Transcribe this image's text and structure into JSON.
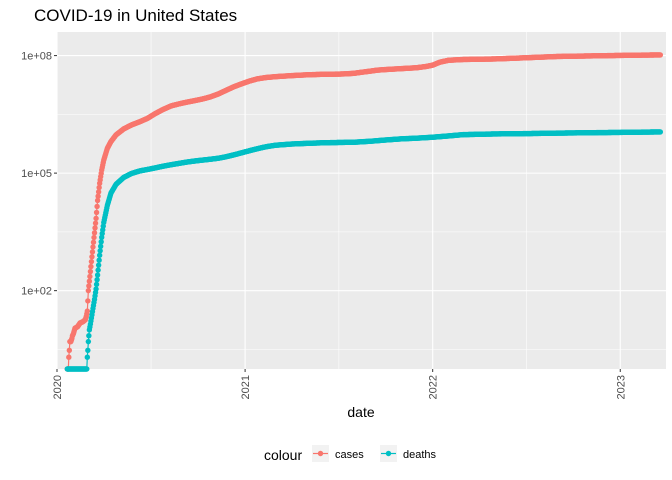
{
  "chart_data": {
    "type": "scatter",
    "title": "COVID-19 in United States",
    "xlabel": "date",
    "ylabel": "",
    "x_scale": "date",
    "y_scale": "log10",
    "xlim": [
      "2020-01-01",
      "2023-03-31"
    ],
    "ylim": [
      1,
      400000000
    ],
    "x_ticks": [
      "2020-01-01",
      "2021-01-01",
      "2022-01-01",
      "2023-01-01"
    ],
    "x_tick_labels": [
      "2020",
      "2021",
      "2022",
      "2023"
    ],
    "y_ticks": [
      100,
      100000,
      100000000
    ],
    "y_tick_labels": [
      "1e+02",
      "1e+05",
      "1e+08"
    ],
    "grid": true,
    "panel_background": "#EBEBEB",
    "legend": {
      "title": "colour",
      "position": "bottom",
      "items": [
        {
          "label": "cases",
          "color": "#F8766D"
        },
        {
          "label": "deaths",
          "color": "#00BFC4"
        }
      ]
    },
    "series": [
      {
        "name": "cases",
        "color": "#F8766D",
        "points": [
          [
            "2020-01-21",
            1
          ],
          [
            "2020-01-22",
            1
          ],
          [
            "2020-01-23",
            1
          ],
          [
            "2020-01-24",
            2
          ],
          [
            "2020-01-25",
            3
          ],
          [
            "2020-01-26",
            5
          ],
          [
            "2020-01-28",
            5
          ],
          [
            "2020-01-30",
            6
          ],
          [
            "2020-01-31",
            7
          ],
          [
            "2020-02-02",
            8
          ],
          [
            "2020-02-05",
            11
          ],
          [
            "2020-02-10",
            12
          ],
          [
            "2020-02-15",
            15
          ],
          [
            "2020-02-20",
            16
          ],
          [
            "2020-02-25",
            18
          ],
          [
            "2020-02-27",
            22
          ],
          [
            "2020-02-29",
            30
          ],
          [
            "2020-03-02",
            100
          ],
          [
            "2020-03-05",
            230
          ],
          [
            "2020-03-08",
            550
          ],
          [
            "2020-03-11",
            1300
          ],
          [
            "2020-03-14",
            3000
          ],
          [
            "2020-03-17",
            7000
          ],
          [
            "2020-03-20",
            20000
          ],
          [
            "2020-03-24",
            55000
          ],
          [
            "2020-03-28",
            120000
          ],
          [
            "2020-04-01",
            215000
          ],
          [
            "2020-04-08",
            430000
          ],
          [
            "2020-04-15",
            640000
          ],
          [
            "2020-04-25",
            950000
          ],
          [
            "2020-05-10",
            1350000
          ],
          [
            "2020-05-25",
            1700000
          ],
          [
            "2020-06-10",
            2050000
          ],
          [
            "2020-06-25",
            2500000
          ],
          [
            "2020-07-10",
            3300000
          ],
          [
            "2020-07-25",
            4200000
          ],
          [
            "2020-08-10",
            5200000
          ],
          [
            "2020-08-25",
            5850000
          ],
          [
            "2020-09-10",
            6500000
          ],
          [
            "2020-09-25",
            7100000
          ],
          [
            "2020-10-10",
            7800000
          ],
          [
            "2020-10-25",
            8800000
          ],
          [
            "2020-11-10",
            10500000
          ],
          [
            "2020-11-25",
            13000000
          ],
          [
            "2020-12-10",
            16000000
          ],
          [
            "2020-12-25",
            19000000
          ],
          [
            "2021-01-10",
            22500000
          ],
          [
            "2021-01-25",
            25500000
          ],
          [
            "2021-02-10",
            27500000
          ],
          [
            "2021-03-01",
            29000000
          ],
          [
            "2021-04-01",
            30800000
          ],
          [
            "2021-05-01",
            32300000
          ],
          [
            "2021-06-01",
            33300000
          ],
          [
            "2021-07-01",
            33700000
          ],
          [
            "2021-07-15",
            34200000
          ],
          [
            "2021-08-01",
            35300000
          ],
          [
            "2021-08-15",
            37500000
          ],
          [
            "2021-09-01",
            40000000
          ],
          [
            "2021-09-15",
            42500000
          ],
          [
            "2021-10-01",
            44000000
          ],
          [
            "2021-11-01",
            46500000
          ],
          [
            "2021-12-01",
            49000000
          ],
          [
            "2021-12-20",
            53000000
          ],
          [
            "2022-01-01",
            57000000
          ],
          [
            "2022-01-15",
            68000000
          ],
          [
            "2022-02-01",
            76000000
          ],
          [
            "2022-03-01",
            79500000
          ],
          [
            "2022-05-01",
            82000000
          ],
          [
            "2022-07-01",
            88000000
          ],
          [
            "2022-09-01",
            95000000
          ],
          [
            "2022-11-01",
            98000000
          ],
          [
            "2023-01-01",
            101000000
          ],
          [
            "2023-03-01",
            103500000
          ],
          [
            "2023-03-20",
            103800000
          ]
        ]
      },
      {
        "name": "deaths",
        "color": "#00BFC4",
        "points": [
          [
            "2020-01-21",
            1
          ],
          [
            "2020-02-28",
            1
          ],
          [
            "2020-02-29",
            2
          ],
          [
            "2020-03-01",
            3
          ],
          [
            "2020-03-02",
            5
          ],
          [
            "2020-03-04",
            10
          ],
          [
            "2020-03-06",
            14
          ],
          [
            "2020-03-08",
            20
          ],
          [
            "2020-03-11",
            35
          ],
          [
            "2020-03-14",
            60
          ],
          [
            "2020-03-17",
            110
          ],
          [
            "2020-03-20",
            250
          ],
          [
            "2020-03-24",
            800
          ],
          [
            "2020-03-28",
            2300
          ],
          [
            "2020-04-01",
            5500
          ],
          [
            "2020-04-08",
            15000
          ],
          [
            "2020-04-15",
            31000
          ],
          [
            "2020-04-25",
            52000
          ],
          [
            "2020-05-10",
            78000
          ],
          [
            "2020-05-25",
            98000
          ],
          [
            "2020-06-10",
            114000
          ],
          [
            "2020-06-25",
            124000
          ],
          [
            "2020-07-10",
            136000
          ],
          [
            "2020-07-25",
            150000
          ],
          [
            "2020-08-10",
            164000
          ],
          [
            "2020-08-25",
            177000
          ],
          [
            "2020-09-10",
            192000
          ],
          [
            "2020-09-25",
            204000
          ],
          [
            "2020-10-10",
            215000
          ],
          [
            "2020-10-25",
            226000
          ],
          [
            "2020-11-10",
            240000
          ],
          [
            "2020-11-25",
            262000
          ],
          [
            "2020-12-10",
            292000
          ],
          [
            "2020-12-25",
            330000
          ],
          [
            "2021-01-10",
            375000
          ],
          [
            "2021-01-25",
            420000
          ],
          [
            "2021-02-10",
            470000
          ],
          [
            "2021-03-01",
            515000
          ],
          [
            "2021-04-01",
            553000
          ],
          [
            "2021-05-01",
            575000
          ],
          [
            "2021-06-01",
            595000
          ],
          [
            "2021-07-01",
            605000
          ],
          [
            "2021-08-01",
            615000
          ],
          [
            "2021-09-01",
            650000
          ],
          [
            "2021-10-01",
            700000
          ],
          [
            "2021-11-01",
            750000
          ],
          [
            "2021-12-01",
            780000
          ],
          [
            "2022-01-01",
            825000
          ],
          [
            "2022-02-01",
            890000
          ],
          [
            "2022-03-01",
            960000
          ],
          [
            "2022-05-01",
            1000000
          ],
          [
            "2022-07-01",
            1020000
          ],
          [
            "2022-09-01",
            1050000
          ],
          [
            "2022-11-01",
            1075000
          ],
          [
            "2023-01-01",
            1095000
          ],
          [
            "2023-03-01",
            1120000
          ],
          [
            "2023-03-20",
            1125000
          ]
        ]
      }
    ]
  }
}
